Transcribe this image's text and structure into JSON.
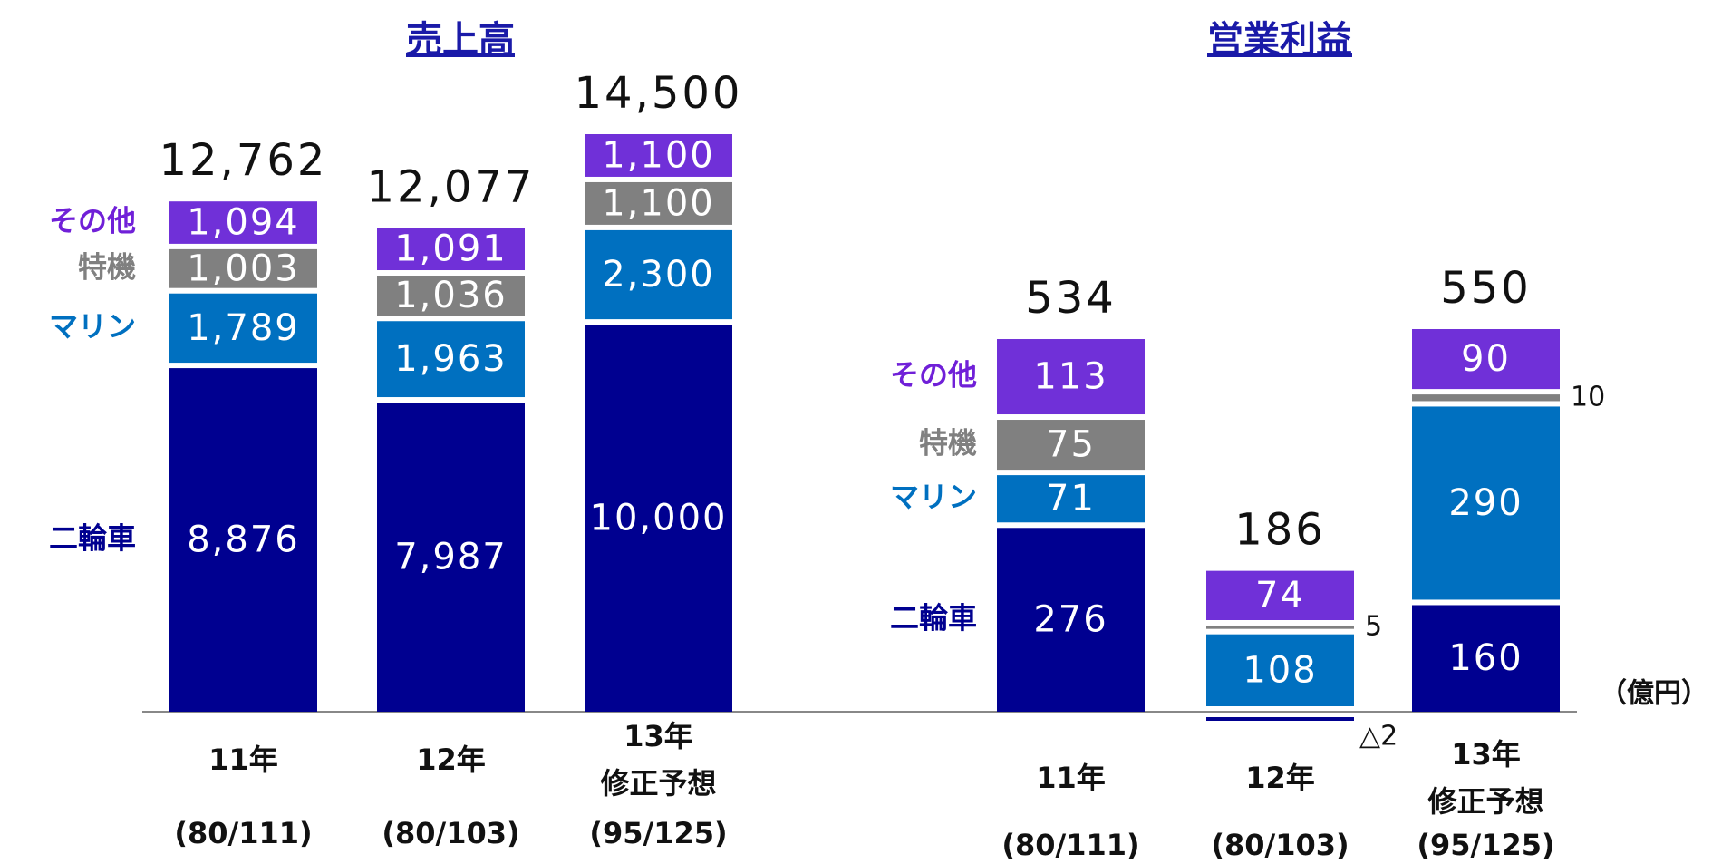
{
  "chart_data": [
    {
      "type": "stacked_bar",
      "title": "売上高",
      "categories": [
        [
          "11年"
        ],
        [
          "12年"
        ],
        [
          "13年",
          "修正予想"
        ]
      ],
      "rates": [
        "(80/111)",
        "(80/103)",
        "(95/125)"
      ],
      "series": [
        {
          "name": "二輪車",
          "color": "#000090",
          "values": [
            8876,
            7987,
            10000
          ],
          "value_labels": [
            "8,876",
            "7,987",
            "10,000"
          ]
        },
        {
          "name": "マリン",
          "color": "#0070c0",
          "values": [
            1789,
            1963,
            2300
          ],
          "value_labels": [
            "1,789",
            "1,963",
            "2,300"
          ]
        },
        {
          "name": "特機",
          "color": "#808080",
          "values": [
            1003,
            1036,
            1100
          ],
          "value_labels": [
            "1,003",
            "1,036",
            "1,100"
          ]
        },
        {
          "name": "その他",
          "color": "#7030d8",
          "values": [
            1094,
            1091,
            1100
          ],
          "value_labels": [
            "1,094",
            "1,091",
            "1,100"
          ]
        }
      ],
      "totals": [
        12762,
        12077,
        14500
      ],
      "total_labels": [
        "12,762",
        "12,077",
        "14,500"
      ]
    },
    {
      "type": "stacked_bar",
      "title": "営業利益",
      "unit": "（億円）",
      "categories": [
        [
          "11年"
        ],
        [
          "12年"
        ],
        [
          "13年",
          "修正予想"
        ]
      ],
      "rates": [
        "(80/111)",
        "(80/103)",
        "(95/125)"
      ],
      "series": [
        {
          "name": "二輪車",
          "color": "#000090",
          "values": [
            276,
            -2,
            160
          ],
          "value_labels": [
            "276",
            "△2",
            "160"
          ]
        },
        {
          "name": "マリン",
          "color": "#0070c0",
          "values": [
            71,
            108,
            290
          ]
        },
        {
          "name": "特機",
          "color": "#808080",
          "values": [
            75,
            5,
            10
          ]
        },
        {
          "name": "その他",
          "color": "#7030d8",
          "values": [
            113,
            74,
            90
          ]
        }
      ],
      "totals": [
        534,
        186,
        550
      ]
    }
  ]
}
